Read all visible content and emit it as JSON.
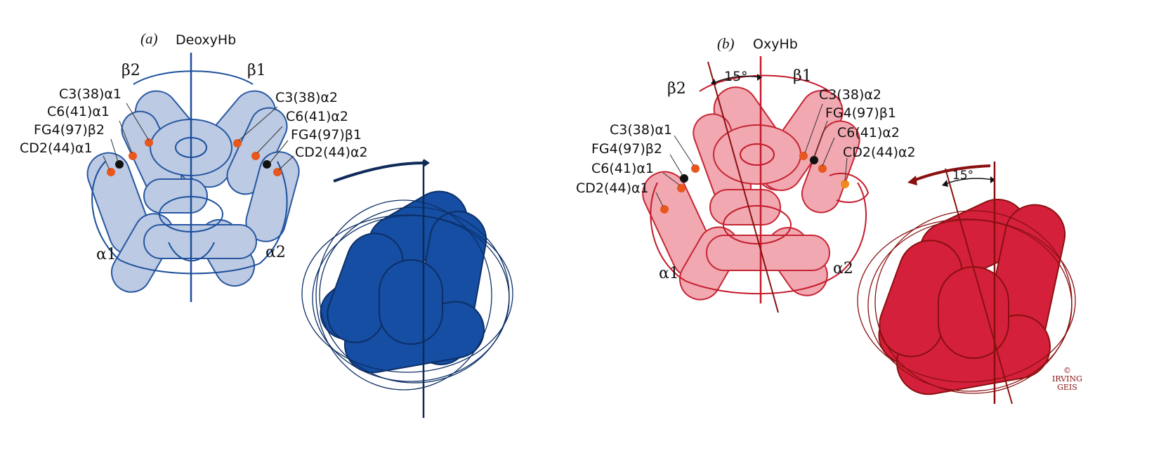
{
  "panel_a": {
    "label": "(a)",
    "title": "DeoxyHb",
    "color": "#1c4f9c",
    "fill_light": "#b9c8e2",
    "chains": {
      "beta2": "β2",
      "beta1": "β1",
      "alpha1": "α1",
      "alpha2": "α2"
    },
    "contacts_left": [
      "C3(38)α1",
      "C6(41)α1",
      "FG4(97)β2",
      "CD2(44)α1"
    ],
    "contacts_right": [
      "C3(38)α2",
      "C6(41)α2",
      "FG4(97)β1",
      "CD2(44)α2"
    ]
  },
  "panel_b": {
    "label": "(b)",
    "title": "OxyHb",
    "color": "#c41a2a",
    "fill_light": "#f1a4ac",
    "chains": {
      "beta2": "β2",
      "beta1": "β1",
      "alpha1": "α1",
      "alpha2": "α2"
    },
    "angle": "15°",
    "angle_small": "15°",
    "contacts_left": [
      "C3(38)α1",
      "FG4(97)β2",
      "C6(41)α1",
      "CD2(44)α1"
    ],
    "contacts_right": [
      "C3(38)α2",
      "FG4(97)β1",
      "C6(41)α2",
      "CD2(44)α2"
    ]
  },
  "signature": {
    "copyright": "©",
    "line1": "IRVING",
    "line2": "GEIS"
  }
}
